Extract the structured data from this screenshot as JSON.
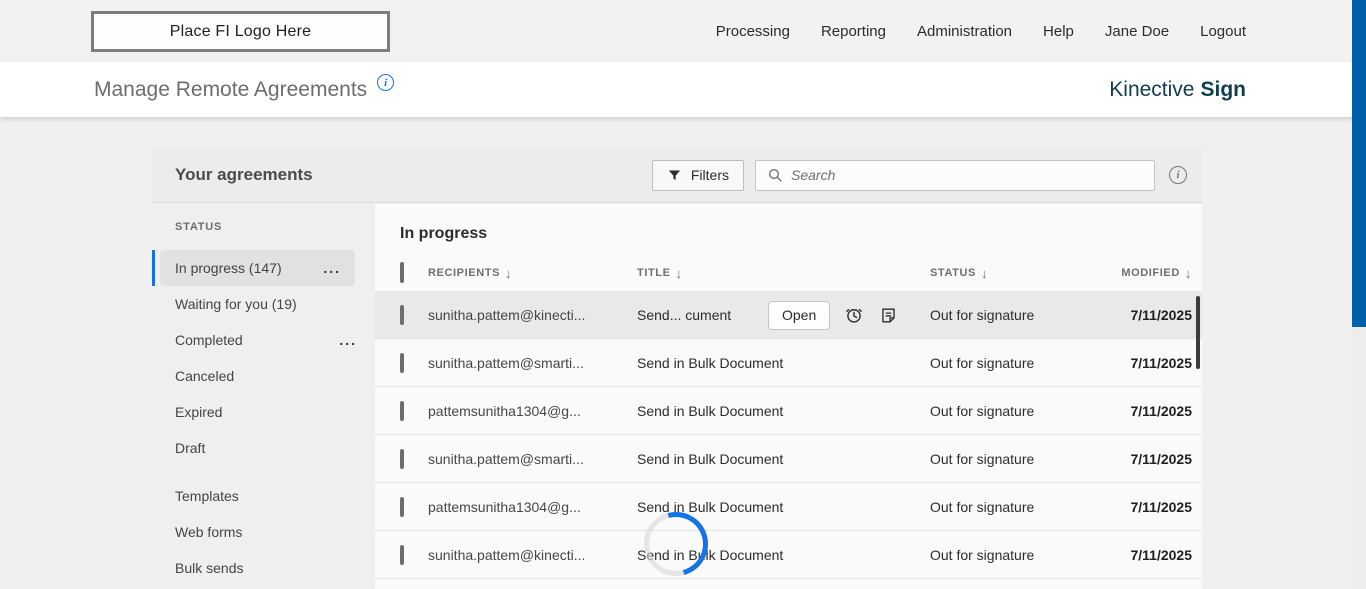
{
  "colors": {
    "accent_blue": "#1473e6",
    "scrollbar_blue": "#005fa8",
    "brand_teal": "#0f3e4e",
    "hover_row_gray": "#e9e9e9"
  },
  "icons": {
    "info_glyph": "i",
    "sort_arrow": "↓",
    "more_dots": "..."
  },
  "top_nav": {
    "logo_placeholder": "Place FI Logo Here",
    "items": [
      "Processing",
      "Reporting",
      "Administration",
      "Help",
      "Jane Doe",
      "Logout"
    ]
  },
  "header": {
    "title": "Manage Remote Agreements",
    "brand_name": "Kinective",
    "brand_product": "Sign"
  },
  "toolbar": {
    "title": "Your agreements",
    "filters_label": "Filters",
    "search_placeholder": "Search"
  },
  "sidebar": {
    "section_label": "STATUS",
    "status_items": [
      {
        "label": "In progress (147)",
        "selected": true,
        "has_more": true
      },
      {
        "label": "Waiting for you (19)",
        "selected": false,
        "has_more": false
      },
      {
        "label": "Completed",
        "selected": false,
        "has_more": true
      },
      {
        "label": "Canceled",
        "selected": false,
        "has_more": false
      },
      {
        "label": "Expired",
        "selected": false,
        "has_more": false
      },
      {
        "label": "Draft",
        "selected": false,
        "has_more": false
      }
    ],
    "extra_items": [
      {
        "label": "Templates"
      },
      {
        "label": "Web forms"
      },
      {
        "label": "Bulk sends"
      }
    ]
  },
  "table": {
    "section_title": "In progress",
    "columns": [
      "RECIPIENTS",
      "TITLE",
      "STATUS",
      "MODIFIED"
    ],
    "open_button_label": "Open",
    "rows": [
      {
        "recipient": "sunitha.pattem@kinecti...",
        "title": "Send... cument",
        "status": "Out for signature",
        "modified": "7/11/2025",
        "hovered": true
      },
      {
        "recipient": "sunitha.pattem@smarti...",
        "title": "Send in Bulk Document",
        "status": "Out for signature",
        "modified": "7/11/2025",
        "hovered": false
      },
      {
        "recipient": "pattemsunitha1304@g...",
        "title": "Send in Bulk Document",
        "status": "Out for signature",
        "modified": "7/11/2025",
        "hovered": false
      },
      {
        "recipient": "sunitha.pattem@smarti...",
        "title": "Send in Bulk Document",
        "status": "Out for signature",
        "modified": "7/11/2025",
        "hovered": false
      },
      {
        "recipient": "pattemsunitha1304@g...",
        "title": "Send in Bulk Document",
        "status": "Out for signature",
        "modified": "7/11/2025",
        "hovered": false
      },
      {
        "recipient": "sunitha.pattem@kinecti...",
        "title": "Send in Bulk Document",
        "status": "Out for signature",
        "modified": "7/11/2025",
        "hovered": false
      }
    ]
  }
}
